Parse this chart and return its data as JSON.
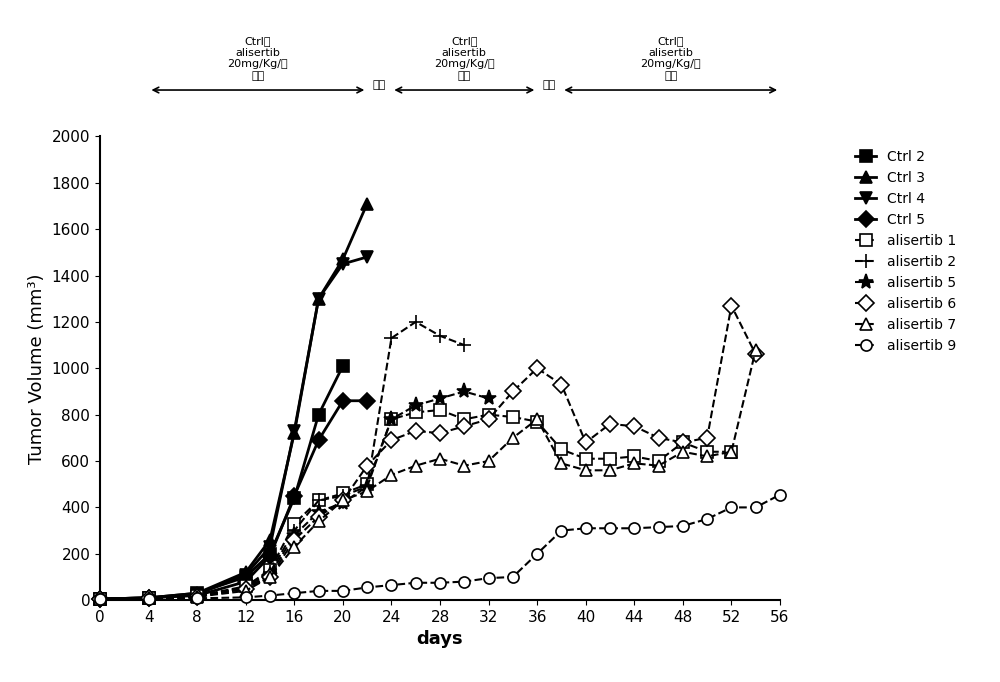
{
  "title": "",
  "xlabel": "days",
  "ylabel": "Tumor Volume (mm³)",
  "xlim": [
    0,
    56
  ],
  "ylim": [
    0,
    2000
  ],
  "xticks": [
    0,
    4,
    8,
    12,
    16,
    20,
    24,
    28,
    32,
    36,
    40,
    44,
    48,
    52,
    56
  ],
  "yticks": [
    0,
    200,
    400,
    600,
    800,
    1000,
    1200,
    1400,
    1600,
    1800,
    2000
  ],
  "series": [
    {
      "label": "Ctrl 2",
      "marker": "s",
      "linestyle": "-",
      "fillstyle": "full",
      "markersize": 8,
      "linewidth": 2,
      "x": [
        0,
        4,
        8,
        12,
        14,
        16,
        18,
        20
      ],
      "y": [
        5,
        10,
        30,
        100,
        200,
        440,
        800,
        1010
      ]
    },
    {
      "label": "Ctrl 3",
      "marker": "^",
      "linestyle": "-",
      "fillstyle": "full",
      "markersize": 8,
      "linewidth": 2,
      "x": [
        0,
        4,
        8,
        12,
        14,
        16,
        18,
        20,
        22
      ],
      "y": [
        5,
        10,
        30,
        120,
        260,
        720,
        1300,
        1470,
        1710
      ]
    },
    {
      "label": "Ctrl 4",
      "marker": "v",
      "linestyle": "-",
      "fillstyle": "full",
      "markersize": 8,
      "linewidth": 2,
      "x": [
        0,
        4,
        8,
        12,
        14,
        16,
        18,
        20,
        22
      ],
      "y": [
        5,
        10,
        25,
        110,
        230,
        730,
        1300,
        1450,
        1480
      ]
    },
    {
      "label": "Ctrl 5",
      "marker": "D",
      "linestyle": "-",
      "fillstyle": "full",
      "markersize": 8,
      "linewidth": 2,
      "x": [
        0,
        4,
        8,
        12,
        14,
        16,
        18,
        20,
        22
      ],
      "y": [
        5,
        10,
        20,
        80,
        190,
        450,
        690,
        860,
        860
      ]
    },
    {
      "label": "alisertib 1",
      "marker": "s",
      "linestyle": "--",
      "fillstyle": "none",
      "markersize": 8,
      "linewidth": 1.5,
      "x": [
        0,
        4,
        8,
        12,
        14,
        16,
        18,
        20,
        22,
        24,
        26,
        28,
        30,
        32,
        34,
        36,
        38,
        40,
        42,
        44,
        46,
        48,
        50,
        52
      ],
      "y": [
        5,
        8,
        18,
        60,
        130,
        330,
        430,
        460,
        500,
        780,
        810,
        820,
        780,
        800,
        790,
        770,
        650,
        610,
        610,
        620,
        600,
        680,
        640,
        640
      ]
    },
    {
      "label": "alisertib 2",
      "marker": "+",
      "linestyle": "--",
      "fillstyle": "full",
      "markersize": 10,
      "linewidth": 1.5,
      "x": [
        0,
        4,
        8,
        12,
        14,
        16,
        18,
        20,
        22,
        24,
        26,
        28,
        30
      ],
      "y": [
        5,
        8,
        15,
        55,
        120,
        300,
        430,
        450,
        490,
        1130,
        1200,
        1140,
        1100
      ]
    },
    {
      "label": "alisertib 5",
      "marker": "*",
      "linestyle": "--",
      "fillstyle": "full",
      "markersize": 11,
      "linewidth": 1.5,
      "x": [
        0,
        4,
        8,
        12,
        14,
        16,
        18,
        20,
        22,
        24,
        26,
        28,
        30,
        32
      ],
      "y": [
        5,
        8,
        15,
        50,
        110,
        280,
        380,
        420,
        490,
        780,
        840,
        870,
        900,
        870
      ]
    },
    {
      "label": "alisertib 6",
      "marker": "D",
      "linestyle": "--",
      "fillstyle": "none",
      "markersize": 8,
      "linewidth": 1.5,
      "x": [
        0,
        4,
        8,
        12,
        14,
        16,
        18,
        20,
        22,
        24,
        26,
        28,
        30,
        32,
        34,
        36,
        38,
        40,
        42,
        44,
        46,
        48,
        50,
        52,
        54
      ],
      "y": [
        5,
        8,
        15,
        50,
        100,
        260,
        360,
        430,
        580,
        690,
        730,
        720,
        750,
        780,
        900,
        1000,
        930,
        680,
        760,
        750,
        700,
        680,
        700,
        1270,
        1060
      ]
    },
    {
      "label": "alisertib 7",
      "marker": "^",
      "linestyle": "--",
      "fillstyle": "none",
      "markersize": 8,
      "linewidth": 1.5,
      "x": [
        0,
        4,
        8,
        12,
        14,
        16,
        18,
        20,
        22,
        24,
        26,
        28,
        30,
        32,
        34,
        36,
        38,
        40,
        42,
        44,
        46,
        48,
        50,
        52,
        54
      ],
      "y": [
        5,
        8,
        15,
        40,
        100,
        230,
        340,
        430,
        470,
        540,
        580,
        610,
        580,
        600,
        700,
        780,
        590,
        560,
        560,
        590,
        580,
        640,
        620,
        640,
        1080
      ]
    },
    {
      "label": "alisertib 9",
      "marker": "o",
      "linestyle": "--",
      "fillstyle": "none",
      "markersize": 8,
      "linewidth": 1.5,
      "x": [
        0,
        4,
        8,
        12,
        14,
        16,
        18,
        20,
        22,
        24,
        26,
        28,
        30,
        32,
        34,
        36,
        38,
        40,
        42,
        44,
        46,
        48,
        50,
        52,
        54,
        56
      ],
      "y": [
        5,
        5,
        8,
        12,
        20,
        30,
        40,
        40,
        55,
        65,
        75,
        75,
        80,
        95,
        100,
        200,
        300,
        310,
        310,
        310,
        315,
        320,
        350,
        400,
        400,
        455
      ]
    }
  ],
  "periods": [
    {
      "x_start": 4,
      "x_end": 22,
      "label": "Ctrl或\nalisertib\n20mg/Kg/天\n灸胃"
    },
    {
      "x_start": 24,
      "x_end": 36,
      "label": "Ctrl或\nalisertib\n20mg/Kg/天\n灸胃"
    },
    {
      "x_start": 38,
      "x_end": 56,
      "label": "Ctrl或\nalisertib\n20mg/Kg/天\n灸胃"
    }
  ],
  "stops": [
    {
      "x": 23,
      "label": "停药"
    },
    {
      "x": 37,
      "label": "停药"
    }
  ],
  "annotation_fontsize": 8,
  "legend_fontsize": 10,
  "axis_label_fontsize": 13,
  "tick_fontsize": 11
}
